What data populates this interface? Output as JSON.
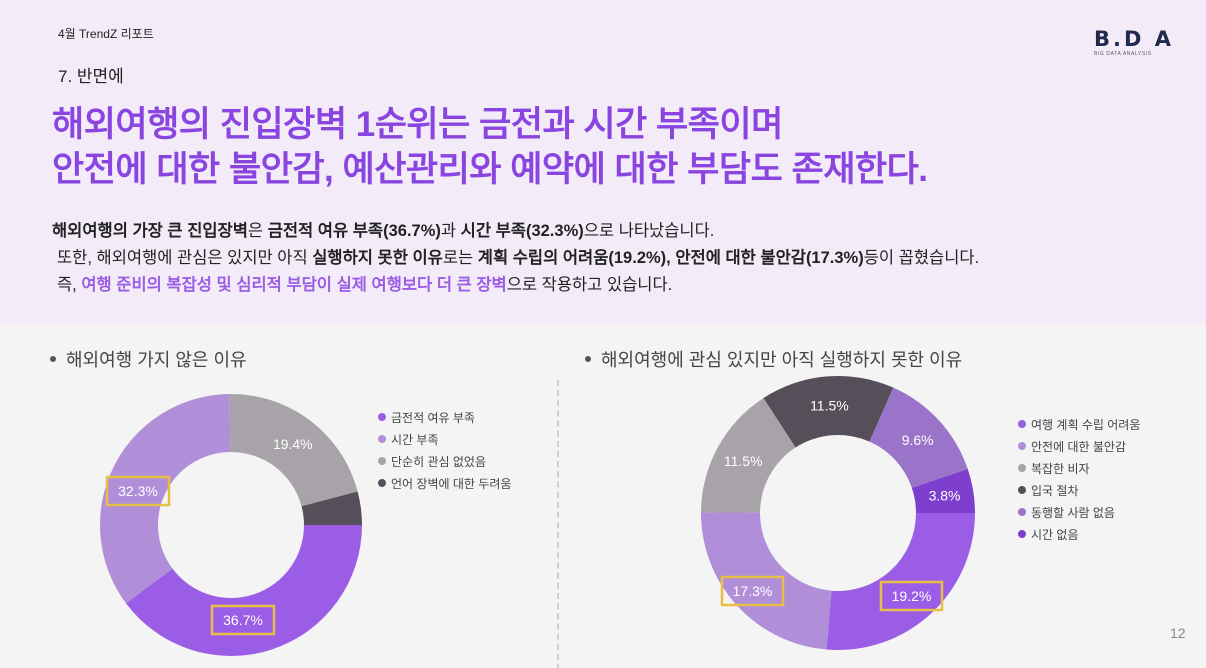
{
  "header": {
    "report_label": "4월 TrendZ 리포트",
    "section_label": "7. 반면에",
    "logo": {
      "main": "B.D A",
      "sub": "BIG DATA ANALYSIS"
    }
  },
  "headline": {
    "line1": "해외여행의 진입장벽 1순위는 금전과 시간 부족이며",
    "line2": "안전에 대한 불안감, 예산관리와 예약에 대한 부담도 존재한다."
  },
  "body": {
    "p1": [
      {
        "text": "해외여행의 가장 큰 진입장벽",
        "style": "b"
      },
      {
        "text": "은 ",
        "style": ""
      },
      {
        "text": "금전적 여유 부족(36.7%)",
        "style": "b"
      },
      {
        "text": "과 ",
        "style": ""
      },
      {
        "text": "시간 부족(32.3%)",
        "style": "b"
      },
      {
        "text": "으로 나타났습니다.",
        "style": ""
      }
    ],
    "p2": [
      {
        "text": "또한, 해외여행에 관심은 있지만 아직 ",
        "style": ""
      },
      {
        "text": "실행하지 못한 이유",
        "style": "b"
      },
      {
        "text": "로는 ",
        "style": ""
      },
      {
        "text": "계획 수립의 어려움(19.2%), 안전에 대한 불안감(17.3%)",
        "style": "b"
      },
      {
        "text": "등이 꼽혔습니다.",
        "style": ""
      }
    ],
    "p3": [
      {
        "text": "즉, ",
        "style": ""
      },
      {
        "text": "여행 준비의 복잡성 및 심리적 부담이 실제 여행보다 더 큰 장벽",
        "style": "hl"
      },
      {
        "text": "으로 작용하고 있습니다.",
        "style": ""
      }
    ]
  },
  "colors": {
    "accent": "#8a45e0",
    "highlight_box": "#e8bf46",
    "top_bg": "#f3ecf8",
    "bottom_bg": "#f4f4f4"
  },
  "page_number": "12",
  "chart_data": [
    {
      "type": "pie",
      "variant": "donut",
      "title": "해외여행 가지 않은 이유",
      "categories": [
        "금전적 여유 부족",
        "시간 부족",
        "단순히 관심 없었음",
        "언어 장벽에 대한 두려움"
      ],
      "values": [
        36.7,
        32.3,
        19.4,
        3.8
      ],
      "labels": [
        "36.7%",
        "32.3%",
        "19.4%",
        ""
      ],
      "colors": [
        "#9b5de5",
        "#b08fd8",
        "#a7a3a8",
        "#564f5a"
      ],
      "highlighted": [
        "36.7%",
        "32.3%"
      ],
      "legend_position": "right"
    },
    {
      "type": "pie",
      "variant": "donut",
      "title": "해외여행에 관심 있지만 아직 실행하지 못한 이유",
      "categories": [
        "여행 계획 수립 어려움",
        "안전에 대한 불안감",
        "복잡한 비자",
        "입국 절차",
        "동행할 사람 없음",
        "시간 없음"
      ],
      "values": [
        19.2,
        17.3,
        11.5,
        11.5,
        9.6,
        3.8
      ],
      "labels": [
        "19.2%",
        "17.3%",
        "11.5%",
        "11.5%",
        "9.6%",
        "3.8%"
      ],
      "colors": [
        "#9b5de5",
        "#b08fd8",
        "#a7a3a8",
        "#564f5a",
        "#9a74c9",
        "#7e3fcf"
      ],
      "highlighted": [
        "19.2%",
        "17.3%"
      ],
      "legend_position": "right"
    }
  ]
}
